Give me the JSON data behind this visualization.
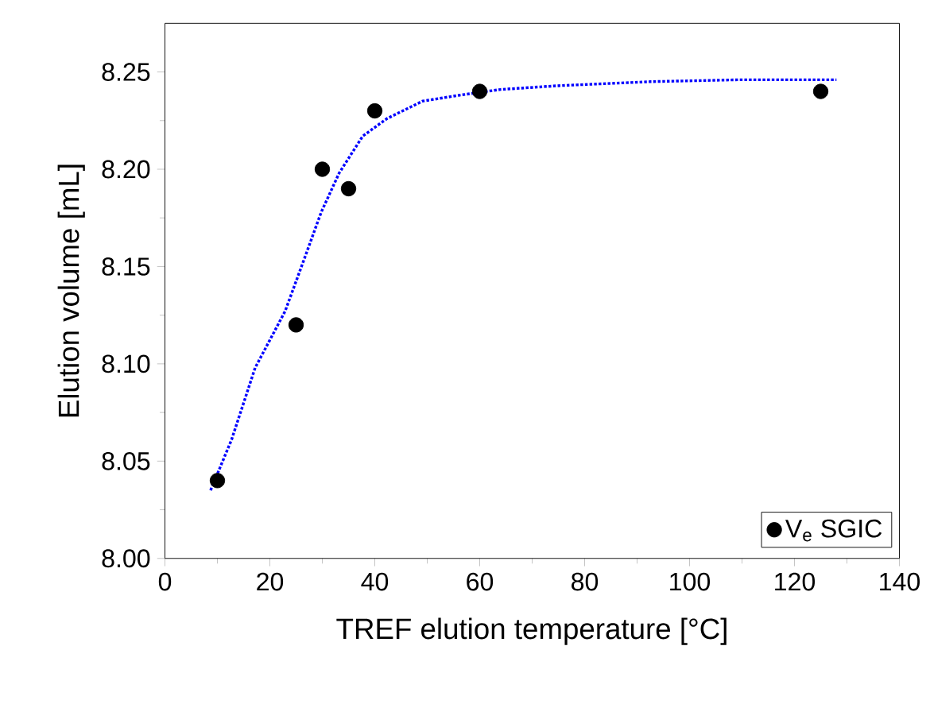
{
  "chart_data": {
    "type": "scatter",
    "xlabel": "TREF elution temperature [°C]",
    "ylabel": "Elution volume [mL]",
    "xlim": [
      0,
      140
    ],
    "ylim": [
      8.0,
      8.275
    ],
    "xticks": [
      0,
      20,
      40,
      60,
      80,
      100,
      120,
      140
    ],
    "yticks": [
      {
        "value": 8.0,
        "label": "8.00"
      },
      {
        "value": 8.05,
        "label": "8.05"
      },
      {
        "value": 8.1,
        "label": "8.10"
      },
      {
        "value": 8.15,
        "label": "8.15"
      },
      {
        "value": 8.2,
        "label": "8.20"
      },
      {
        "value": 8.25,
        "label": "8.25"
      }
    ],
    "grid": false,
    "legend": "bottom right",
    "marker": "circle",
    "series": [
      {
        "name": "V$_{e}$ SGIC",
        "color": "#000000",
        "x": [
          10,
          25,
          30,
          35,
          40,
          60,
          125
        ],
        "values": [
          8.04,
          8.12,
          8.2,
          8.19,
          8.23,
          8.24,
          8.24
        ]
      },
      {
        "type": "line",
        "color": "#0000ff",
        "line_style": "dotted",
        "marker": "none",
        "x": [
          8.7,
          12.7,
          17.2,
          22.9,
          26.3,
          29.8,
          33.2,
          37.7,
          42.3,
          49.1,
          56,
          64,
          75.4,
          92.5,
          109.6,
          128
        ],
        "values": [
          8.035,
          8.061,
          8.098,
          8.127,
          8.152,
          8.178,
          8.198,
          8.217,
          8.226,
          8.235,
          8.238,
          8.241,
          8.243,
          8.245,
          8.246,
          8.246
        ]
      }
    ]
  }
}
